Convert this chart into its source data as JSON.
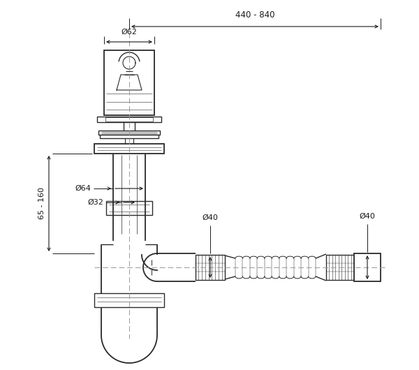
{
  "bg_color": "#ffffff",
  "line_color": "#2a2a2a",
  "dim_color": "#1a1a1a",
  "dash_color": "#999999",
  "fig_width": 6.0,
  "fig_height": 5.3,
  "dpi": 100,
  "xlim": [
    0,
    6.0
  ],
  "ylim": [
    0,
    5.3
  ],
  "annotations": {
    "dim_440_840": "440 - 840",
    "dim_62": "Ø62",
    "dim_64": "Ø64",
    "dim_32": "Ø32",
    "dim_40_left": "Ø40",
    "dim_40_right": "Ø40",
    "dim_65_160": "65 - 160"
  }
}
